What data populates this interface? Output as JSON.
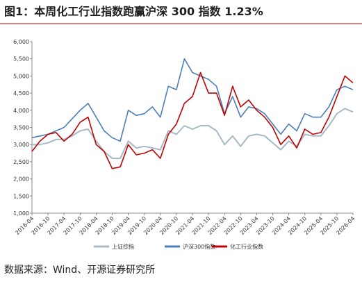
{
  "chart_data": {
    "type": "line",
    "title": "图1：本周化工行业指数跑赢沪深 300 指数 1.23%",
    "source": "数据来源：Wind、开源证券研究所",
    "x": [
      "2016-04",
      null,
      "2016-10",
      null,
      "2017-04",
      null,
      "2017-10",
      null,
      "2018-04",
      null,
      "2018-10",
      null,
      "2019-04",
      null,
      "2019-10",
      null,
      "2020-04",
      null,
      "2020-10",
      null,
      "2021-04",
      null,
      "2021-10",
      null,
      "2022-04",
      null,
      "2022-10",
      null,
      "2023-04",
      null,
      "2023-10",
      null,
      "2024-04",
      null,
      "2024-10",
      null,
      "2025-04",
      null,
      "2025-10",
      null,
      "2026-04"
    ],
    "series": [
      {
        "name": "上证综指",
        "color": "#a5b9c7",
        "values": [
          3000,
          3000,
          3050,
          3150,
          3150,
          3250,
          3400,
          3450,
          3100,
          2800,
          2600,
          2600,
          3100,
          2900,
          2950,
          2900,
          2850,
          3400,
          3300,
          3550,
          3450,
          3550,
          3550,
          3400,
          3000,
          3250,
          2950,
          3250,
          3300,
          3250,
          3050,
          2850,
          3100,
          2950,
          3300,
          3250,
          3250,
          3550,
          3900,
          4050,
          3950
        ]
      },
      {
        "name": "沪深300指数",
        "color": "#4a7ebb",
        "values": [
          3200,
          3250,
          3300,
          3400,
          3500,
          3750,
          4000,
          4200,
          3800,
          3400,
          3200,
          3100,
          4000,
          3850,
          3900,
          4100,
          3800,
          4700,
          4600,
          5500,
          5100,
          5000,
          4900,
          4700,
          3900,
          4400,
          3800,
          4100,
          4050,
          3900,
          3600,
          3300,
          3600,
          3400,
          3900,
          3800,
          3800,
          4100,
          4600,
          4700,
          4600
        ]
      },
      {
        "name": "化工行业指数",
        "color": "#c00000",
        "values": [
          2800,
          3100,
          3300,
          3350,
          3100,
          3300,
          3650,
          3800,
          3000,
          2800,
          2300,
          2350,
          3000,
          2700,
          2750,
          2850,
          2600,
          3300,
          3600,
          4200,
          4400,
          5100,
          4500,
          4500,
          3850,
          4700,
          4100,
          4300,
          4000,
          3800,
          3500,
          3000,
          3250,
          2900,
          3450,
          3300,
          3350,
          3800,
          4400,
          5000,
          4800
        ]
      }
    ],
    "ylim": [
      1000,
      6000
    ],
    "yticks": [
      {
        "value": 1000,
        "label": "1,000"
      },
      {
        "value": 1500,
        "label": "1,500"
      },
      {
        "value": 2000,
        "label": "2,000"
      },
      {
        "value": 2500,
        "label": "2,500"
      },
      {
        "value": 3000,
        "label": "3,000"
      },
      {
        "value": 3500,
        "label": "3,500"
      },
      {
        "value": 4000,
        "label": "4,000"
      },
      {
        "value": 4500,
        "label": "4,500"
      },
      {
        "value": 5000,
        "label": "5,000"
      },
      {
        "value": 5500,
        "label": "5,500"
      },
      {
        "value": 6000,
        "label": "6,000"
      }
    ]
  }
}
